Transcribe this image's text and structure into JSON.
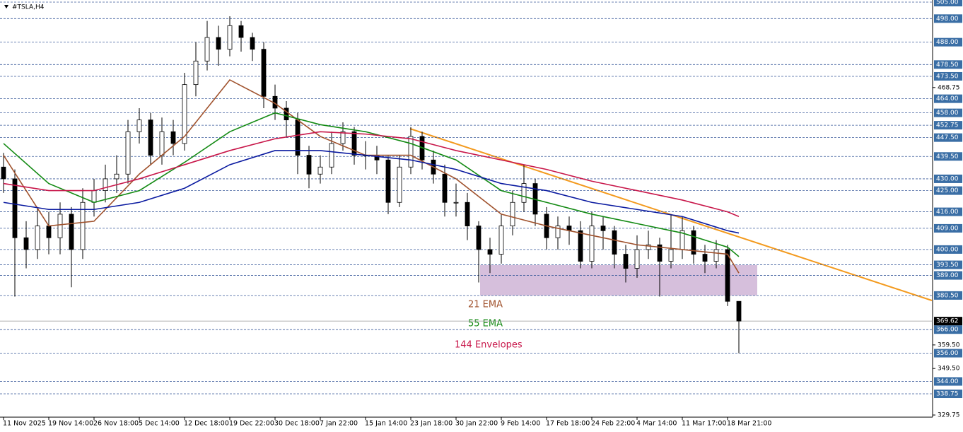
{
  "chart_data": {
    "type": "candlestick",
    "title": "#TSLA,H4",
    "categories": [
      "11 Nov 2025",
      null,
      null,
      null,
      "19 Nov 14:00",
      null,
      null,
      null,
      "26 Nov 18:00",
      null,
      null,
      null,
      "5 Dec 14:00",
      null,
      null,
      null,
      "12 Dec 18:00",
      null,
      null,
      null,
      "19 Dec 22:00",
      null,
      null,
      null,
      "30 Dec 18:00",
      null,
      null,
      null,
      "7 Jan 22:00",
      null,
      null,
      null,
      "15 Jan 14:00",
      null,
      null,
      null,
      "23 Jan 18:00",
      null,
      null,
      null,
      "30 Jan 22:00",
      null,
      null,
      null,
      "9 Feb 14:00",
      null,
      null,
      null,
      "17 Feb 18:00",
      null,
      null,
      null,
      "24 Feb 22:00",
      null,
      null,
      null,
      "4 Mar 14:00",
      null,
      null,
      null,
      "11 Mar 17:00",
      null,
      null,
      null,
      "18 Mar 21:00",
      null
    ],
    "open": [
      435,
      430,
      405,
      400,
      410,
      405,
      415,
      400,
      420,
      425,
      430,
      432,
      450,
      455,
      440,
      450,
      445,
      470,
      480,
      490,
      485,
      495,
      490,
      485,
      465,
      460,
      455,
      440,
      432,
      435,
      445,
      450,
      440,
      440,
      438,
      420,
      435,
      448,
      438,
      432,
      420,
      420,
      410,
      400,
      398,
      410,
      420,
      428,
      415,
      405,
      410,
      408,
      395,
      410,
      408,
      398,
      392,
      400,
      402,
      395,
      400,
      408,
      398,
      395,
      400,
      378
    ],
    "high": [
      441,
      434,
      412,
      418,
      416,
      420,
      418,
      426,
      430,
      436,
      440,
      455,
      460,
      458,
      456,
      455,
      475,
      488,
      497,
      495,
      499,
      497,
      492,
      488,
      470,
      463,
      458,
      444,
      440,
      450,
      454,
      452,
      446,
      444,
      440,
      440,
      452,
      450,
      442,
      436,
      428,
      424,
      412,
      405,
      415,
      425,
      436,
      430,
      418,
      414,
      414,
      412,
      416,
      414,
      410,
      402,
      406,
      408,
      405,
      415,
      414,
      410,
      402,
      404,
      402,
      378
    ],
    "low": [
      424,
      380,
      392,
      396,
      398,
      398,
      384,
      396,
      414,
      420,
      424,
      428,
      445,
      436,
      436,
      440,
      442,
      465,
      476,
      478,
      482,
      484,
      480,
      460,
      455,
      448,
      432,
      426,
      428,
      432,
      442,
      436,
      434,
      432,
      415,
      418,
      432,
      434,
      428,
      414,
      414,
      404,
      386,
      390,
      394,
      406,
      416,
      410,
      400,
      400,
      402,
      392,
      392,
      400,
      392,
      386,
      388,
      396,
      380,
      392,
      396,
      394,
      390,
      392,
      376,
      356
    ],
    "close": [
      430,
      405,
      400,
      410,
      405,
      415,
      400,
      420,
      425,
      430,
      432,
      450,
      455,
      440,
      450,
      445,
      470,
      480,
      490,
      485,
      495,
      490,
      485,
      465,
      460,
      455,
      440,
      432,
      435,
      445,
      450,
      440,
      440,
      438,
      420,
      435,
      448,
      438,
      432,
      420,
      420,
      410,
      400,
      398,
      410,
      420,
      428,
      415,
      405,
      410,
      408,
      395,
      410,
      408,
      398,
      392,
      400,
      402,
      395,
      400,
      408,
      398,
      395,
      400,
      378,
      369.62
    ],
    "series": [
      {
        "name": "21 EMA",
        "color": "#a0522d",
        "x": [
          0,
          4,
          8,
          12,
          16,
          20,
          24,
          28,
          32,
          36,
          40,
          44,
          48,
          52,
          56,
          60,
          64,
          65
        ],
        "values": [
          440,
          410,
          412,
          432,
          448,
          472,
          462,
          448,
          440,
          440,
          430,
          415,
          410,
          406,
          402,
          400,
          398,
          390
        ]
      },
      {
        "name": "55 EMA",
        "color": "#138a13",
        "x": [
          0,
          4,
          8,
          12,
          16,
          20,
          24,
          28,
          32,
          36,
          40,
          44,
          48,
          52,
          56,
          60,
          64,
          65
        ],
        "values": [
          445,
          428,
          420,
          425,
          437,
          450,
          458,
          453,
          450,
          445,
          438,
          425,
          420,
          415,
          411,
          407,
          401,
          397
        ]
      },
      {
        "name": "144 Envelopes",
        "color": "#c8174a",
        "x": [
          0,
          4,
          8,
          12,
          16,
          20,
          24,
          28,
          32,
          36,
          40,
          44,
          48,
          52,
          56,
          60,
          64,
          65
        ],
        "values": [
          428,
          425,
          425,
          430,
          436,
          442,
          447,
          450,
          449,
          447,
          442,
          438,
          434,
          429,
          425,
          421,
          416,
          414
        ]
      },
      {
        "color": "#0a1aa0",
        "x": [
          0,
          4,
          8,
          12,
          16,
          20,
          24,
          28,
          32,
          36,
          40,
          44,
          48,
          52,
          56,
          60,
          64,
          65
        ],
        "values": [
          420,
          417,
          417,
          420,
          426,
          436,
          442,
          442,
          440,
          438,
          434,
          428,
          425,
          420,
          417,
          414,
          408,
          407
        ]
      }
    ],
    "ylim": [
      329.75,
      505
    ],
    "yticks": [
      {
        "value": 468.75,
        "label": "468.75"
      },
      {
        "value": 359.5,
        "label": "359.50"
      },
      {
        "value": 349.5,
        "label": "349.50"
      },
      {
        "value": 329.75,
        "label": "329.75"
      }
    ],
    "levels": [
      {
        "value": 505,
        "label": "505.00"
      },
      {
        "value": 498,
        "label": "498.00"
      },
      {
        "value": 488,
        "label": "488.00"
      },
      {
        "value": 478.5,
        "label": "478.50"
      },
      {
        "value": 473.5,
        "label": "473.50"
      },
      {
        "value": 464,
        "label": "464.00"
      },
      {
        "value": 458,
        "label": "458.00"
      },
      {
        "value": 452.75,
        "label": "452.75"
      },
      {
        "value": 447.5,
        "label": "447.50"
      },
      {
        "value": 439.5,
        "label": "439.50"
      },
      {
        "value": 430,
        "label": "430.00"
      },
      {
        "value": 425,
        "label": "425.00"
      },
      {
        "value": 416,
        "label": "416.00"
      },
      {
        "value": 409,
        "label": "409.00"
      },
      {
        "value": 400,
        "label": "400.00"
      },
      {
        "value": 393.5,
        "label": "393.50"
      },
      {
        "value": 389,
        "label": "389.00"
      },
      {
        "value": 380.5,
        "label": "380.50"
      },
      {
        "value": 366,
        "label": "366.00"
      },
      {
        "value": 356,
        "label": "356.00"
      },
      {
        "value": 344,
        "label": "344.00"
      },
      {
        "value": 338.75,
        "label": "338.75"
      }
    ],
    "last_price": 369.62
  }
}
